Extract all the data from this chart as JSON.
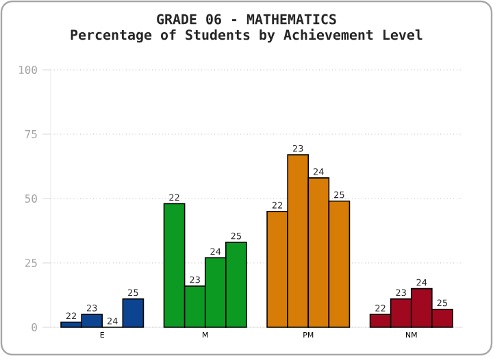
{
  "chart_data": {
    "type": "bar",
    "title": "GRADE 06 - MATHEMATICS",
    "subtitle": "Percentage of Students by Achievement Level",
    "categories": [
      "E",
      "M",
      "PM",
      "NM"
    ],
    "series": [
      {
        "name": "22",
        "colors": [
          "#0c4491",
          "#0c9a22",
          "#d67c07",
          "#a00820"
        ],
        "values": [
          2,
          48,
          45,
          5
        ]
      },
      {
        "name": "23",
        "colors": [
          "#0c4491",
          "#0c9a22",
          "#d67c07",
          "#a00820"
        ],
        "values": [
          5,
          16,
          67,
          11
        ]
      },
      {
        "name": "24",
        "colors": [
          "#0c4491",
          "#0c9a22",
          "#d67c07",
          "#a00820"
        ],
        "values": [
          0,
          27,
          58,
          15
        ]
      },
      {
        "name": "25",
        "colors": [
          "#0c4491",
          "#0c9a22",
          "#d67c07",
          "#a00820"
        ],
        "values": [
          11,
          33,
          49,
          7
        ]
      }
    ],
    "ylim": [
      0,
      100
    ],
    "yticks": [
      0,
      25,
      50,
      75,
      100
    ],
    "grid": "y"
  }
}
